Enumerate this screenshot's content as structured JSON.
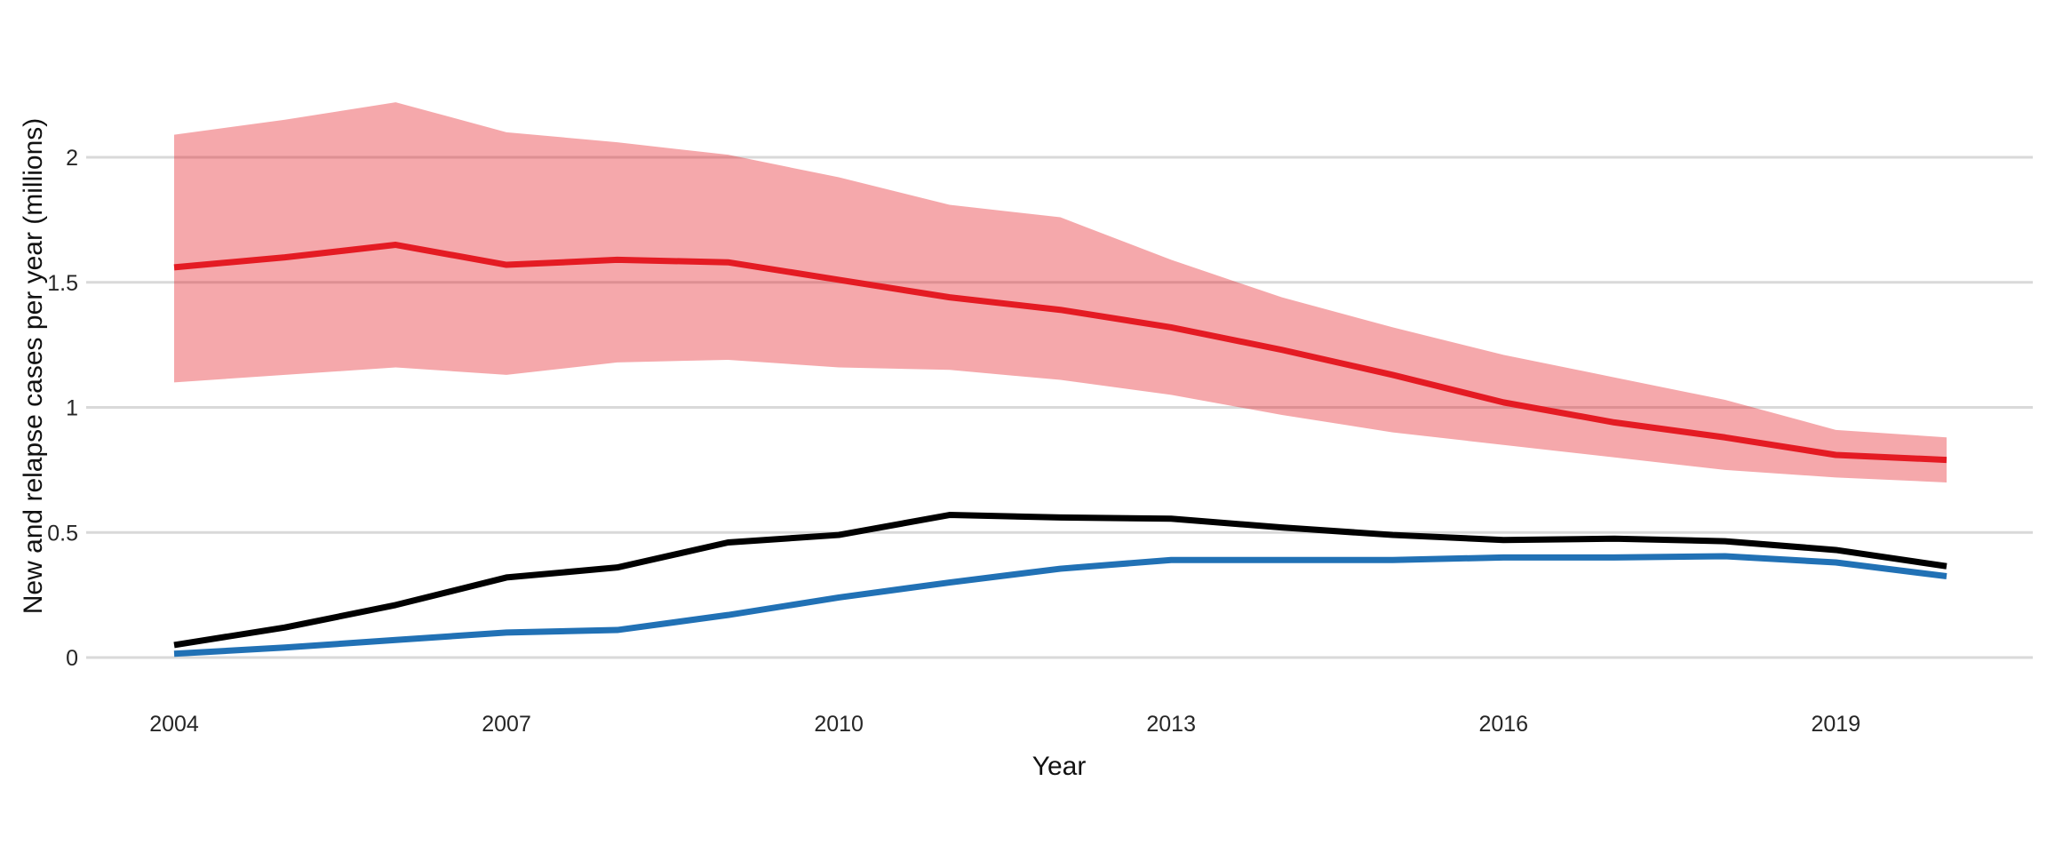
{
  "figure": {
    "background_color": "#ffffff",
    "gridline_color": "#d9d9d9",
    "tick_label_color": "#262626",
    "x_axis": {
      "title": "Year",
      "tick_labels": [
        "2004",
        "2007",
        "2010",
        "2013",
        "2016",
        "2019"
      ],
      "tick_years": [
        2004,
        2007,
        2010,
        2013,
        2016,
        2019
      ]
    },
    "y_axis": {
      "title": "New and relapse cases per year (millions)",
      "tick_labels": [
        "0",
        "0.5",
        "1",
        "1.5",
        "2"
      ],
      "tick_values": [
        0,
        0.5,
        1,
        1.5,
        2
      ]
    }
  },
  "chart_data": {
    "type": "line",
    "title": "",
    "xlabel": "Year",
    "ylabel": "New and relapse cases per year (millions)",
    "xlim": [
      2004,
      2020
    ],
    "ylim": [
      0,
      2.35
    ],
    "grid": "horizontal gridlines only, light gray on white",
    "legend_position": "none",
    "x": [
      2004,
      2005,
      2006,
      2007,
      2008,
      2009,
      2010,
      2011,
      2012,
      2013,
      2014,
      2015,
      2016,
      2017,
      2018,
      2019,
      2020
    ],
    "series": [
      {
        "name": "red-line-estimate",
        "color": "#e41b23",
        "values": [
          1.56,
          1.6,
          1.65,
          1.57,
          1.59,
          1.58,
          1.51,
          1.44,
          1.39,
          1.32,
          1.23,
          1.13,
          1.02,
          0.94,
          0.88,
          0.81,
          0.79
        ]
      },
      {
        "name": "black-line",
        "color": "#000000",
        "values": [
          0.05,
          0.12,
          0.21,
          0.32,
          0.36,
          0.46,
          0.49,
          0.57,
          0.56,
          0.555,
          0.52,
          0.49,
          0.47,
          0.475,
          0.465,
          0.43,
          0.365
        ]
      },
      {
        "name": "blue-line",
        "color": "#2171b5",
        "values": [
          0.015,
          0.04,
          0.07,
          0.1,
          0.11,
          0.17,
          0.24,
          0.3,
          0.355,
          0.39,
          0.39,
          0.39,
          0.4,
          0.4,
          0.405,
          0.38,
          0.325
        ]
      }
    ],
    "confidence_band": {
      "belongs_to": "red-line-estimate",
      "fill": "#e41b23",
      "opacity": 0.38,
      "upper": [
        2.09,
        2.15,
        2.22,
        2.1,
        2.06,
        2.01,
        1.92,
        1.81,
        1.76,
        1.59,
        1.44,
        1.32,
        1.21,
        1.12,
        1.03,
        0.91,
        0.88
      ],
      "lower": [
        1.1,
        1.13,
        1.16,
        1.13,
        1.18,
        1.19,
        1.16,
        1.15,
        1.11,
        1.05,
        0.97,
        0.9,
        0.85,
        0.8,
        0.75,
        0.72,
        0.7
      ]
    }
  }
}
